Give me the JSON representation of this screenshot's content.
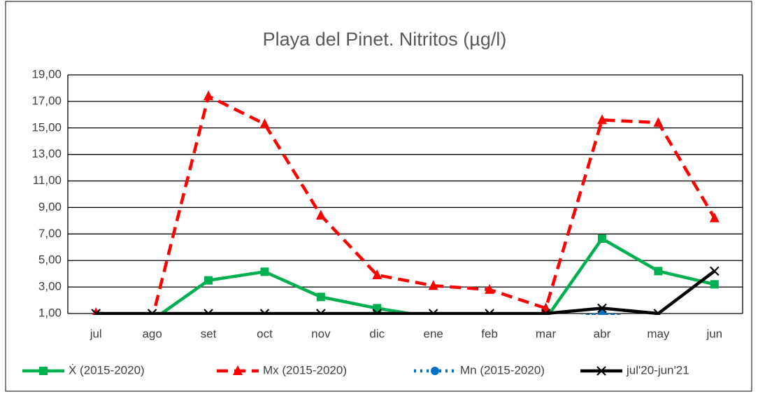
{
  "chart_data": {
    "type": "line",
    "title": "Playa del Pinet. Nitritos (µg/l)",
    "categories": [
      "jul",
      "ago",
      "set",
      "oct",
      "nov",
      "dic",
      "ene",
      "feb",
      "mar",
      "abr",
      "may",
      "jun"
    ],
    "series": [
      {
        "name": "Ẋ (2015-2020)",
        "color": "#00b050",
        "line_style": "solid",
        "marker": "square",
        "values": [
          0.5,
          0.5,
          3.5,
          4.15,
          2.25,
          1.4,
          0.7,
          0.6,
          0.6,
          6.65,
          4.2,
          3.2
        ]
      },
      {
        "name": "Mx (2015-2020)",
        "color": "#ff0000",
        "line_style": "dashed",
        "marker": "triangle",
        "values": [
          1.05,
          0.6,
          17.4,
          15.3,
          8.4,
          3.9,
          3.1,
          2.8,
          1.4,
          15.6,
          15.4,
          8.2
        ]
      },
      {
        "name": "Mn (2015-2020)",
        "color": "#0070c0",
        "line_style": "dotted",
        "marker": "circle",
        "values": [
          0.5,
          0.5,
          0.5,
          0.5,
          0.5,
          0.5,
          0.5,
          0.5,
          0.5,
          1.0,
          0.5,
          0.5
        ]
      },
      {
        "name": "jul'20-jun'21",
        "color": "#000000",
        "line_style": "solid",
        "marker": "x",
        "values": [
          1,
          1,
          1,
          1,
          1,
          1,
          1,
          1,
          1,
          1.4,
          1,
          4.2
        ]
      }
    ],
    "ylim": [
      1,
      19
    ],
    "yticks": [
      {
        "value": 1,
        "label": "1,00"
      },
      {
        "value": 3,
        "label": "3,00"
      },
      {
        "value": 5,
        "label": "5,00"
      },
      {
        "value": 7,
        "label": "7,00"
      },
      {
        "value": 9,
        "label": "9,00"
      },
      {
        "value": 11,
        "label": "11,00"
      },
      {
        "value": 13,
        "label": "13,00"
      },
      {
        "value": 15,
        "label": "15,00"
      },
      {
        "value": 17,
        "label": "17,00"
      },
      {
        "value": 19,
        "label": "19,00"
      }
    ],
    "grid": true,
    "legend": "bottom"
  }
}
